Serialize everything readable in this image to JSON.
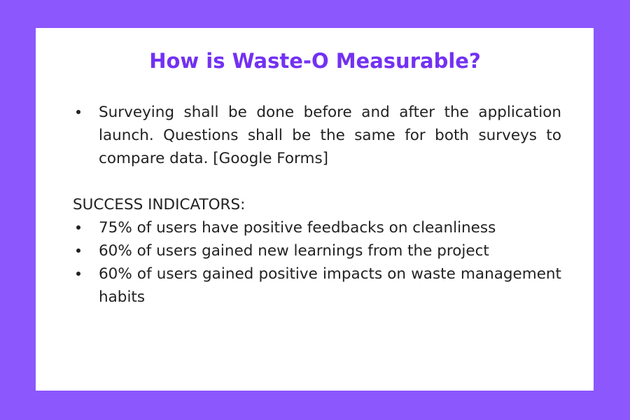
{
  "slide": {
    "title": "How is Waste-O Measurable?",
    "intro_bullet": "Surveying shall be done before and after the application launch. Questions shall be the same for both surveys to compare data. [Google Forms]",
    "success_heading": "SUCCESS INDICATORS:",
    "indicators": [
      "75% of users have positive feedbacks on cleanliness",
      "60% of users gained new learnings from the project",
      "60% of users gained positive impacts on waste management habits"
    ]
  },
  "colors": {
    "background": "#8c57fd",
    "card": "#ffffff",
    "title": "#7331f2",
    "text": "#222222"
  }
}
